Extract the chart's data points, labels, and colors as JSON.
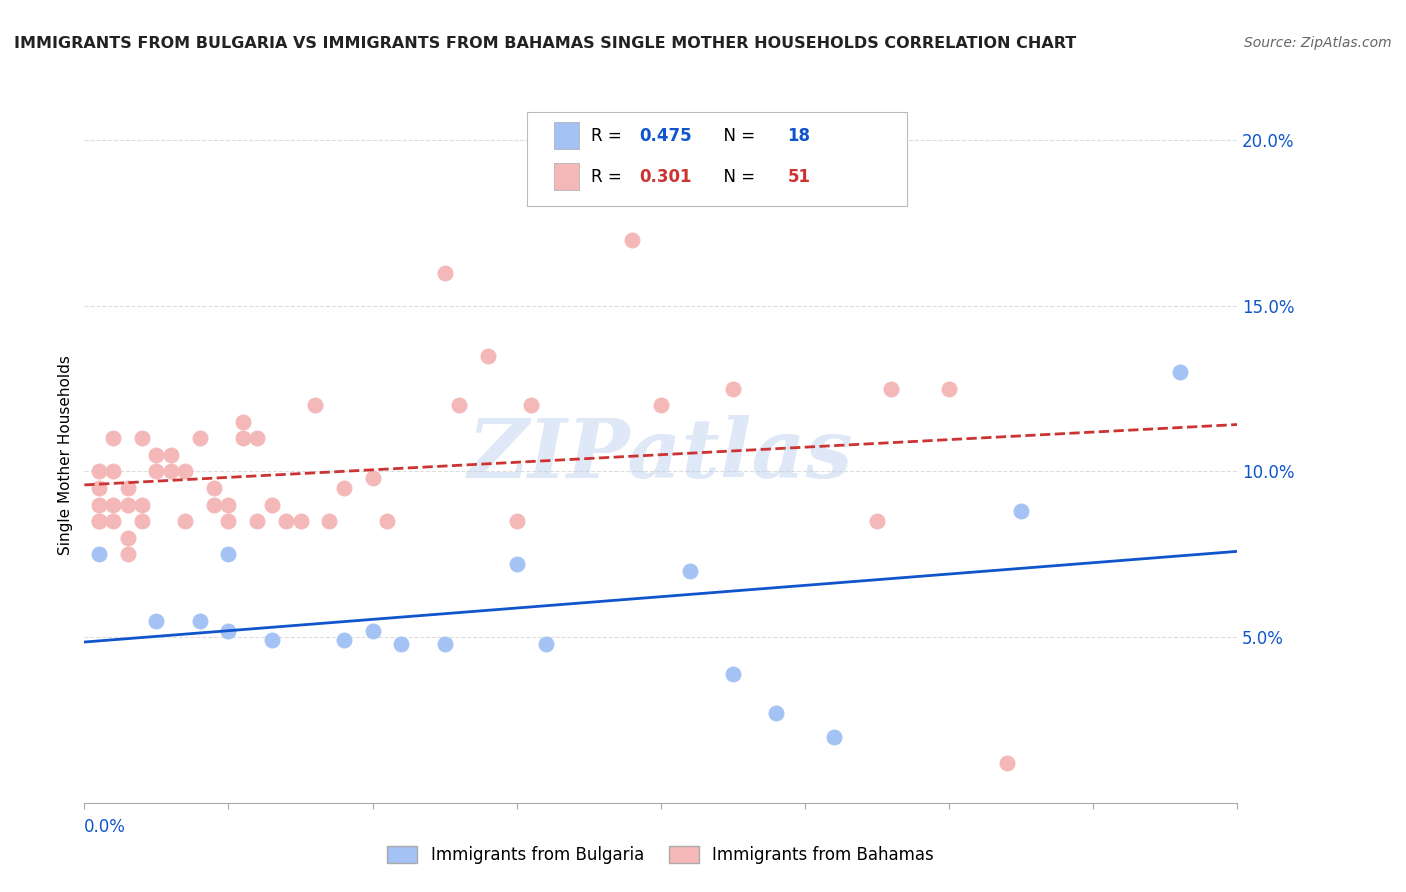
{
  "title": "IMMIGRANTS FROM BULGARIA VS IMMIGRANTS FROM BAHAMAS SINGLE MOTHER HOUSEHOLDS CORRELATION CHART",
  "source": "Source: ZipAtlas.com",
  "ylabel": "Single Mother Households",
  "xlim": [
    0.0,
    0.08
  ],
  "ylim": [
    0.0,
    0.21
  ],
  "yticks": [
    0.0,
    0.05,
    0.1,
    0.15,
    0.2
  ],
  "ytick_labels": [
    "",
    "5.0%",
    "10.0%",
    "15.0%",
    "20.0%"
  ],
  "bulgaria_color": "#a4c2f4",
  "bahamas_color": "#f4b8b8",
  "bulgaria_line_color": "#1155cc",
  "bahamas_line_color": "#cc3333",
  "R_bulgaria": 0.475,
  "N_bulgaria": 18,
  "R_bahamas": 0.301,
  "N_bahamas": 51,
  "legend_label_bulgaria": "Immigrants from Bulgaria",
  "legend_label_bahamas": "Immigrants from Bahamas",
  "watermark": "ZIPatlas",
  "bulgaria_x": [
    0.001,
    0.005,
    0.008,
    0.01,
    0.01,
    0.013,
    0.018,
    0.02,
    0.022,
    0.025,
    0.03,
    0.032,
    0.042,
    0.045,
    0.048,
    0.052,
    0.065,
    0.076
  ],
  "bulgaria_y": [
    0.075,
    0.055,
    0.055,
    0.075,
    0.052,
    0.049,
    0.049,
    0.052,
    0.048,
    0.048,
    0.072,
    0.048,
    0.07,
    0.039,
    0.027,
    0.02,
    0.088,
    0.13
  ],
  "bahamas_x": [
    0.001,
    0.001,
    0.001,
    0.001,
    0.001,
    0.002,
    0.002,
    0.002,
    0.002,
    0.003,
    0.003,
    0.003,
    0.003,
    0.004,
    0.004,
    0.004,
    0.005,
    0.005,
    0.006,
    0.006,
    0.007,
    0.007,
    0.008,
    0.009,
    0.009,
    0.01,
    0.01,
    0.011,
    0.011,
    0.012,
    0.012,
    0.013,
    0.014,
    0.015,
    0.016,
    0.017,
    0.018,
    0.02,
    0.021,
    0.025,
    0.026,
    0.028,
    0.03,
    0.031,
    0.038,
    0.04,
    0.045,
    0.055,
    0.056,
    0.06,
    0.064
  ],
  "bahamas_y": [
    0.085,
    0.085,
    0.09,
    0.095,
    0.1,
    0.085,
    0.09,
    0.1,
    0.11,
    0.075,
    0.08,
    0.09,
    0.095,
    0.085,
    0.09,
    0.11,
    0.1,
    0.105,
    0.1,
    0.105,
    0.085,
    0.1,
    0.11,
    0.09,
    0.095,
    0.09,
    0.085,
    0.11,
    0.115,
    0.085,
    0.11,
    0.09,
    0.085,
    0.085,
    0.12,
    0.085,
    0.095,
    0.098,
    0.085,
    0.16,
    0.12,
    0.135,
    0.085,
    0.12,
    0.17,
    0.12,
    0.125,
    0.085,
    0.125,
    0.125,
    0.012
  ],
  "grid_color": "#dddddd",
  "spine_color": "#aaaaaa",
  "text_color": "#1155cc",
  "title_color": "#222222",
  "source_color": "#666666"
}
